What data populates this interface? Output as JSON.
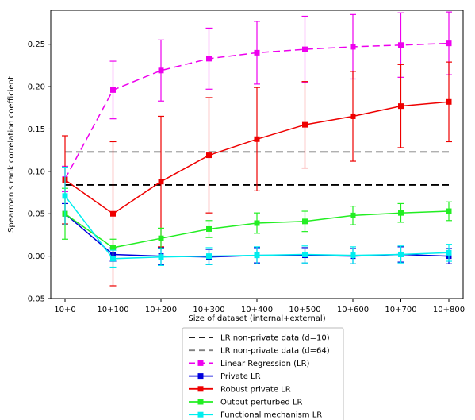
{
  "chart_data": {
    "type": "line",
    "xlabel": "Size of dataset (internal+external)",
    "ylabel": "Spearman's rank correlation coefficient",
    "categories": [
      "10+0",
      "10+100",
      "10+200",
      "10+300",
      "10+400",
      "10+500",
      "10+600",
      "10+700",
      "10+800"
    ],
    "ylim": [
      -0.05,
      0.29
    ],
    "yticks": [
      "-0.05",
      "0.00",
      "0.05",
      "0.10",
      "0.15",
      "0.20",
      "0.25"
    ],
    "grid": false,
    "legend_position": "below-center",
    "reference_lines": [
      {
        "name": "LR non-private data (d=10)",
        "value": 0.084,
        "color": "#000000",
        "style": "dashed"
      },
      {
        "name": "LR non-private data (d=64)",
        "value": 0.123,
        "color": "#808080",
        "style": "dashed"
      }
    ],
    "series": [
      {
        "name": "Linear Regression (LR)",
        "color": "#ee00ee",
        "style": "dashed",
        "values": [
          0.091,
          0.196,
          0.219,
          0.233,
          0.24,
          0.244,
          0.247,
          0.249,
          0.251
        ],
        "errors": [
          0.015,
          0.034,
          0.036,
          0.036,
          0.037,
          0.039,
          0.038,
          0.038,
          0.037
        ]
      },
      {
        "name": "Private LR",
        "color": "#0000dd",
        "style": "solid",
        "values": [
          0.05,
          0.002,
          0.0,
          -0.001,
          0.001,
          0.001,
          0.0,
          0.002,
          0.0
        ],
        "errors": [
          0.012,
          0.008,
          0.01,
          0.009,
          0.009,
          0.009,
          0.009,
          0.009,
          0.009
        ]
      },
      {
        "name": "Robust private LR",
        "color": "#ee0000",
        "style": "solid",
        "values": [
          0.09,
          0.05,
          0.088,
          0.119,
          0.138,
          0.155,
          0.165,
          0.177,
          0.182
        ],
        "errors": [
          0.052,
          0.085,
          0.077,
          0.068,
          0.061,
          0.051,
          0.053,
          0.049,
          0.047
        ]
      },
      {
        "name": "Output perturbed LR",
        "color": "#22ee22",
        "style": "solid",
        "values": [
          0.05,
          0.01,
          0.021,
          0.032,
          0.039,
          0.041,
          0.048,
          0.051,
          0.053
        ],
        "errors": [
          0.03,
          0.01,
          0.012,
          0.01,
          0.012,
          0.012,
          0.011,
          0.011,
          0.011
        ]
      },
      {
        "name": "Functional mechanism LR",
        "color": "#00eeee",
        "style": "solid",
        "values": [
          0.071,
          -0.003,
          -0.001,
          0.0,
          0.001,
          0.002,
          0.001,
          0.002,
          0.004
        ],
        "errors": [
          0.034,
          0.01,
          0.01,
          0.01,
          0.01,
          0.01,
          0.01,
          0.01,
          0.01
        ]
      }
    ]
  }
}
